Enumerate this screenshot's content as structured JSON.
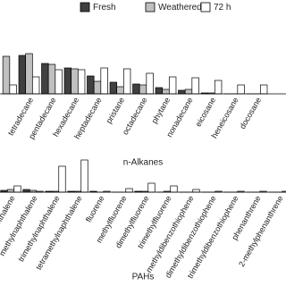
{
  "chart_data": [
    {
      "type": "bar",
      "x_label": "n-Alkanes",
      "categories": [
        null,
        "tetradecane",
        "pentadecane",
        "hexadecane",
        "heptadecane",
        "pristane",
        "octadecane",
        "phytane",
        "nonadecane",
        "eicosane",
        "heneicosane",
        "docosane"
      ],
      "series": [
        {
          "name": "Fresh",
          "color": "#404040",
          "values": [
            null,
            43,
            34,
            29,
            20,
            13,
            11,
            7,
            4,
            1,
            0,
            0
          ]
        },
        {
          "name": "Weathered",
          "color": "#c0c0c0",
          "values": [
            42,
            45,
            33,
            28,
            14,
            8,
            10,
            5,
            5,
            1,
            0,
            0
          ]
        },
        {
          "name": "72 h",
          "color": "#ffffff",
          "values": [
            10,
            19,
            27,
            27,
            29,
            28,
            23,
            19,
            18,
            15,
            10,
            10
          ]
        }
      ],
      "ylim": [
        0,
        50
      ]
    },
    {
      "type": "bar",
      "x_label": "PAHs",
      "categories": [
        "naphthalene",
        "methylnaphthalene",
        "trimethylnaphthalene",
        "tetramethylnaphthalene",
        "fluorene",
        "methylfluorene",
        "dimethylfluorene",
        "trimethylfluorene",
        "methyldibenzothiophene",
        "dimethyldibenzothiophene",
        "trimethyldibenzothiophene",
        "phenanthrene",
        "2-methylphenanthrene"
      ],
      "series": [
        {
          "color": "#404040",
          "values": [
            2,
            3,
            1,
            1,
            1,
            0,
            1,
            0,
            0,
            0,
            0,
            0,
            0
          ]
        },
        {
          "color": "#c0c0c0",
          "values": [
            3,
            2,
            1,
            1,
            0,
            0,
            1,
            1,
            0,
            0,
            0,
            0,
            0
          ]
        },
        {
          "color": "#ffffff",
          "values": [
            7,
            1,
            29,
            36,
            1,
            4,
            10,
            7,
            3,
            1,
            1,
            1,
            1
          ]
        }
      ],
      "ylim": [
        0,
        50
      ]
    }
  ]
}
